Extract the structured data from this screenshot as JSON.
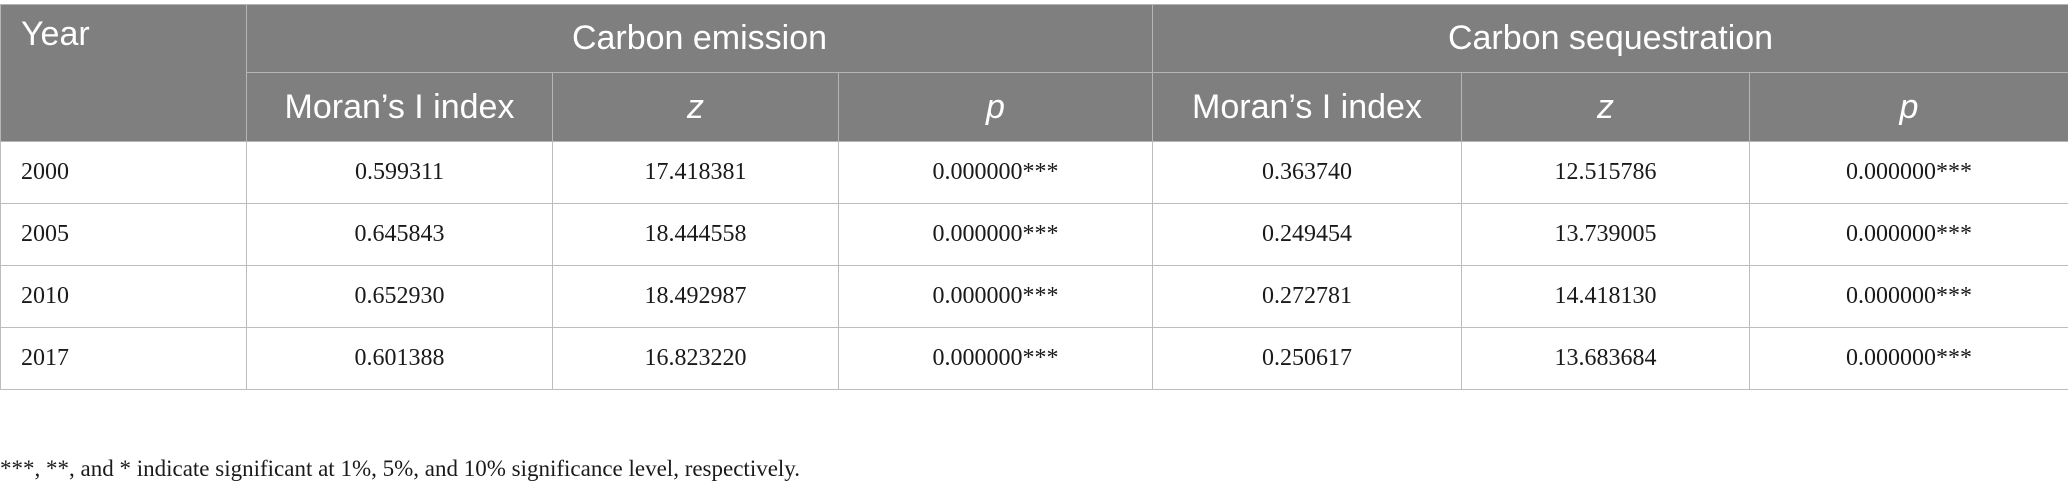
{
  "table": {
    "header": {
      "year": "Year",
      "groups": [
        "Carbon emission",
        "Carbon sequestration"
      ],
      "subcolumns": [
        "Moran’s I index",
        "z",
        "p",
        "Moran’s I index",
        "z",
        "p"
      ]
    },
    "rows": [
      [
        "2000",
        "0.599311",
        "17.418381",
        "0.000000***",
        "0.363740",
        "12.515786",
        "0.000000***"
      ],
      [
        "2005",
        "0.645843",
        "18.444558",
        "0.000000***",
        "0.249454",
        "13.739005",
        "0.000000***"
      ],
      [
        "2010",
        "0.652930",
        "18.492987",
        "0.000000***",
        "0.272781",
        "14.418130",
        "0.000000***"
      ],
      [
        "2017",
        "0.601388",
        "16.823220",
        "0.000000***",
        "0.250617",
        "13.683684",
        "0.000000***"
      ]
    ]
  },
  "footnote": "***, **, and * indicate significant at 1%, 5%, and 10% significance level, respectively."
}
